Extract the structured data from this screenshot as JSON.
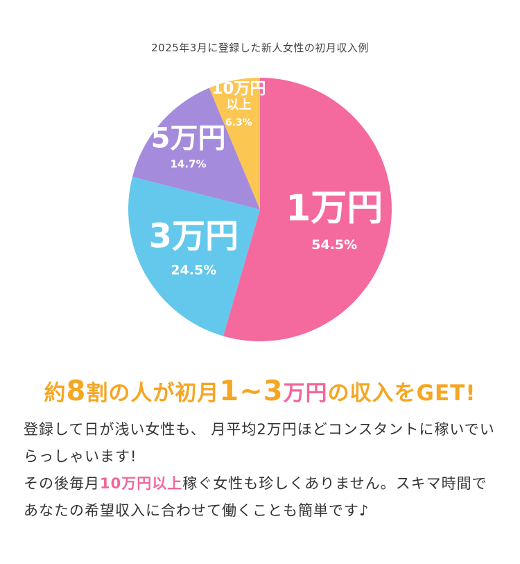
{
  "chart_data": {
    "type": "pie",
    "title": "2025年3月に登録した新人女性の初月収入例",
    "slices": [
      {
        "label": "1万円",
        "value": 54.5,
        "display": "54.5",
        "color": "#f56a9e"
      },
      {
        "label": "3万円",
        "value": 24.5,
        "display": "24.5",
        "color": "#64c8ec"
      },
      {
        "label": "5万円",
        "value": 14.7,
        "display": "14.7",
        "color": "#a58bdc"
      },
      {
        "label_lines": [
          "10万円",
          "以上"
        ],
        "value": 6.3,
        "display": "6.3",
        "color": "#fcc653"
      }
    ],
    "percent_unit": "%"
  },
  "headline": {
    "p1": "約",
    "n1": "8",
    "p2": "割の人が初月",
    "n2": "1~3",
    "p3": "万円",
    "p4": "の収入をGET!"
  },
  "body": {
    "t1": "登録して日が浅い女性も、 月平均2万円ほどコンスタントに稼いでいらっしゃいます!",
    "t2": "その後毎月",
    "t3": "10万円以上",
    "t4": "稼ぐ女性も珍しくありません。スキマ時間であなたの希望収入に合わせて働くことも簡単です♪"
  }
}
